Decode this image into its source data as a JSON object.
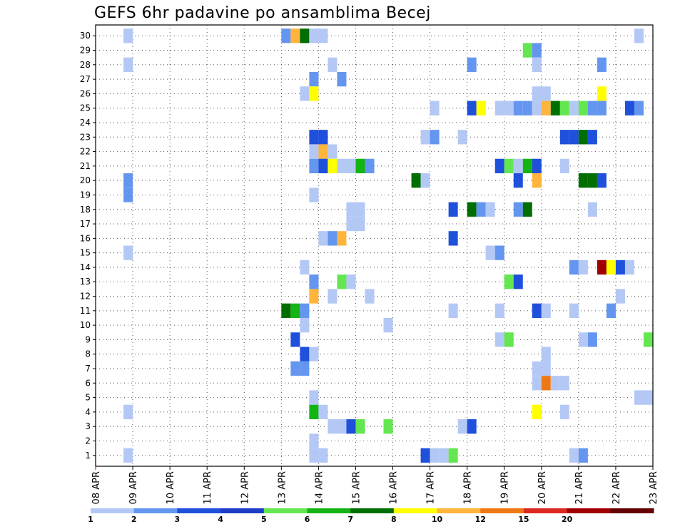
{
  "chart_data": {
    "type": "heatmap",
    "title": "GEFS 6hr padavine po ansamblima Becej",
    "y_ticks": [
      "1",
      "2",
      "3",
      "4",
      "5",
      "6",
      "7",
      "8",
      "9",
      "10",
      "11",
      "12",
      "13",
      "14",
      "15",
      "16",
      "17",
      "18",
      "19",
      "20",
      "21",
      "22",
      "23",
      "24",
      "25",
      "26",
      "27",
      "28",
      "29",
      "30"
    ],
    "y_range": [
      1,
      30
    ],
    "x_ticks": [
      "08 APR",
      "09 APR",
      "10 APR",
      "11 APR",
      "12 APR",
      "13 APR",
      "14 APR",
      "15 APR",
      "16 APR",
      "17 APR",
      "18 APR",
      "19 APR",
      "20 APR",
      "21 APR",
      "22 APR",
      "23 APR"
    ],
    "x_range_days": [
      0,
      15
    ],
    "time_step_hours": 6,
    "grid": true,
    "legend_placement": "bottom",
    "legend": {
      "labels": [
        "1",
        "2",
        "3",
        "4",
        "5",
        "6",
        "7",
        "8",
        "10",
        "12",
        "15",
        "20"
      ],
      "colors": [
        "#b4c8f5",
        "#6496f0",
        "#1e50dc",
        "#1e3cc8",
        "#64e650",
        "#14b414",
        "#006e00",
        "#ffff00",
        "#ffb43c",
        "#f07814",
        "#dc281e",
        "#a00000",
        "#640000"
      ]
    },
    "cells": [
      {
        "time": "08 APR 18Z",
        "member": 30,
        "category": 0
      },
      {
        "time": "13 APR 00Z",
        "member": 30,
        "category": 1
      },
      {
        "time": "13 APR 06Z",
        "member": 30,
        "category": 8
      },
      {
        "time": "13 APR 12Z",
        "member": 30,
        "category": 6
      },
      {
        "time": "13 APR 18Z",
        "member": 30,
        "category": 0
      },
      {
        "time": "14 APR 00Z",
        "member": 30,
        "category": 0
      },
      {
        "time": "22 APR 12Z",
        "member": 30,
        "category": 0
      },
      {
        "time": "19 APR 12Z",
        "member": 29,
        "category": 4
      },
      {
        "time": "19 APR 18Z",
        "member": 29,
        "category": 1
      },
      {
        "time": "08 APR 18Z",
        "member": 28,
        "category": 0
      },
      {
        "time": "14 APR 06Z",
        "member": 28,
        "category": 0
      },
      {
        "time": "18 APR 00Z",
        "member": 28,
        "category": 1
      },
      {
        "time": "19 APR 18Z",
        "member": 28,
        "category": 0
      },
      {
        "time": "21 APR 12Z",
        "member": 28,
        "category": 1
      },
      {
        "time": "13 APR 18Z",
        "member": 27,
        "category": 1
      },
      {
        "time": "14 APR 12Z",
        "member": 27,
        "category": 1
      },
      {
        "time": "13 APR 12Z",
        "member": 26,
        "category": 0
      },
      {
        "time": "13 APR 18Z",
        "member": 26,
        "category": 7
      },
      {
        "time": "19 APR 18Z",
        "member": 26,
        "category": 0
      },
      {
        "time": "20 APR 00Z",
        "member": 26,
        "category": 0
      },
      {
        "time": "21 APR 12Z",
        "member": 26,
        "category": 7
      },
      {
        "time": "17 APR 00Z",
        "member": 25,
        "category": 0
      },
      {
        "time": "18 APR 00Z",
        "member": 25,
        "category": 2
      },
      {
        "time": "18 APR 06Z",
        "member": 25,
        "category": 7
      },
      {
        "time": "18 APR 18Z",
        "member": 25,
        "category": 0
      },
      {
        "time": "19 APR 00Z",
        "member": 25,
        "category": 0
      },
      {
        "time": "19 APR 06Z",
        "member": 25,
        "category": 1
      },
      {
        "time": "19 APR 12Z",
        "member": 25,
        "category": 1
      },
      {
        "time": "19 APR 18Z",
        "member": 25,
        "category": 0
      },
      {
        "time": "20 APR 00Z",
        "member": 25,
        "category": 8
      },
      {
        "time": "20 APR 06Z",
        "member": 25,
        "category": 6
      },
      {
        "time": "20 APR 12Z",
        "member": 25,
        "category": 4
      },
      {
        "time": "20 APR 18Z",
        "member": 25,
        "category": 0
      },
      {
        "time": "21 APR 00Z",
        "member": 25,
        "category": 4
      },
      {
        "time": "21 APR 06Z",
        "member": 25,
        "category": 1
      },
      {
        "time": "21 APR 12Z",
        "member": 25,
        "category": 1
      },
      {
        "time": "22 APR 06Z",
        "member": 25,
        "category": 2
      },
      {
        "time": "22 APR 12Z",
        "member": 25,
        "category": 1
      },
      {
        "time": "13 APR 18Z",
        "member": 23,
        "category": 2
      },
      {
        "time": "14 APR 00Z",
        "member": 23,
        "category": 2
      },
      {
        "time": "16 APR 18Z",
        "member": 23,
        "category": 0
      },
      {
        "time": "17 APR 00Z",
        "member": 23,
        "category": 1
      },
      {
        "time": "17 APR 18Z",
        "member": 23,
        "category": 0
      },
      {
        "time": "20 APR 12Z",
        "member": 23,
        "category": 2
      },
      {
        "time": "20 APR 18Z",
        "member": 23,
        "category": 2
      },
      {
        "time": "21 APR 00Z",
        "member": 23,
        "category": 6
      },
      {
        "time": "21 APR 06Z",
        "member": 23,
        "category": 2
      },
      {
        "time": "13 APR 18Z",
        "member": 22,
        "category": 0
      },
      {
        "time": "14 APR 00Z",
        "member": 22,
        "category": 8
      },
      {
        "time": "14 APR 06Z",
        "member": 22,
        "category": 0
      },
      {
        "time": "13 APR 18Z",
        "member": 21,
        "category": 1
      },
      {
        "time": "14 APR 00Z",
        "member": 21,
        "category": 2
      },
      {
        "time": "14 APR 06Z",
        "member": 21,
        "category": 7
      },
      {
        "time": "14 APR 12Z",
        "member": 21,
        "category": 0
      },
      {
        "time": "14 APR 18Z",
        "member": 21,
        "category": 0
      },
      {
        "time": "15 APR 00Z",
        "member": 21,
        "category": 5
      },
      {
        "time": "15 APR 06Z",
        "member": 21,
        "category": 1
      },
      {
        "time": "18 APR 18Z",
        "member": 21,
        "category": 2
      },
      {
        "time": "19 APR 00Z",
        "member": 21,
        "category": 4
      },
      {
        "time": "19 APR 06Z",
        "member": 21,
        "category": 0
      },
      {
        "time": "19 APR 12Z",
        "member": 21,
        "category": 5
      },
      {
        "time": "19 APR 18Z",
        "member": 21,
        "category": 2
      },
      {
        "time": "20 APR 12Z",
        "member": 21,
        "category": 0
      },
      {
        "time": "08 APR 18Z",
        "member": 20,
        "category": 1
      },
      {
        "time": "16 APR 12Z",
        "member": 20,
        "category": 6
      },
      {
        "time": "16 APR 18Z",
        "member": 20,
        "category": 0
      },
      {
        "time": "19 APR 06Z",
        "member": 20,
        "category": 2
      },
      {
        "time": "19 APR 18Z",
        "member": 20,
        "category": 8
      },
      {
        "time": "21 APR 00Z",
        "member": 20,
        "category": 6
      },
      {
        "time": "21 APR 06Z",
        "member": 20,
        "category": 6
      },
      {
        "time": "21 APR 12Z",
        "member": 20,
        "category": 2
      },
      {
        "time": "08 APR 18Z",
        "member": 19,
        "category": 1
      },
      {
        "time": "13 APR 18Z",
        "member": 19,
        "category": 0
      },
      {
        "time": "17 APR 12Z",
        "member": 18,
        "category": 2
      },
      {
        "time": "14 APR 18Z",
        "member": 18,
        "category": 0
      },
      {
        "time": "15 APR 00Z",
        "member": 18,
        "category": 0
      },
      {
        "time": "18 APR 00Z",
        "member": 18,
        "category": 6
      },
      {
        "time": "18 APR 06Z",
        "member": 18,
        "category": 1
      },
      {
        "time": "18 APR 12Z",
        "member": 18,
        "category": 0
      },
      {
        "time": "19 APR 06Z",
        "member": 18,
        "category": 1
      },
      {
        "time": "19 APR 12Z",
        "member": 18,
        "category": 6
      },
      {
        "time": "21 APR 06Z",
        "member": 18,
        "category": 0
      },
      {
        "time": "14 APR 18Z",
        "member": 17,
        "category": 0
      },
      {
        "time": "15 APR 00Z",
        "member": 17,
        "category": 0
      },
      {
        "time": "14 APR 00Z",
        "member": 16,
        "category": 0
      },
      {
        "time": "14 APR 06Z",
        "member": 16,
        "category": 1
      },
      {
        "time": "14 APR 12Z",
        "member": 16,
        "category": 8
      },
      {
        "time": "17 APR 12Z",
        "member": 16,
        "category": 2
      },
      {
        "time": "08 APR 18Z",
        "member": 15,
        "category": 0
      },
      {
        "time": "18 APR 12Z",
        "member": 15,
        "category": 0
      },
      {
        "time": "18 APR 18Z",
        "member": 15,
        "category": 1
      },
      {
        "time": "13 APR 12Z",
        "member": 14,
        "category": 0
      },
      {
        "time": "20 APR 18Z",
        "member": 14,
        "category": 1
      },
      {
        "time": "21 APR 00Z",
        "member": 14,
        "category": 0
      },
      {
        "time": "21 APR 12Z",
        "member": 14,
        "category": 11
      },
      {
        "time": "21 APR 18Z",
        "member": 14,
        "category": 7
      },
      {
        "time": "22 APR 00Z",
        "member": 14,
        "category": 2
      },
      {
        "time": "22 APR 06Z",
        "member": 14,
        "category": 0
      },
      {
        "time": "13 APR 18Z",
        "member": 13,
        "category": 1
      },
      {
        "time": "14 APR 12Z",
        "member": 13,
        "category": 4
      },
      {
        "time": "14 APR 18Z",
        "member": 13,
        "category": 0
      },
      {
        "time": "19 APR 00Z",
        "member": 13,
        "category": 4
      },
      {
        "time": "19 APR 06Z",
        "member": 13,
        "category": 2
      },
      {
        "time": "13 APR 18Z",
        "member": 12,
        "category": 8
      },
      {
        "time": "14 APR 06Z",
        "member": 12,
        "category": 0
      },
      {
        "time": "15 APR 06Z",
        "member": 12,
        "category": 0
      },
      {
        "time": "22 APR 00Z",
        "member": 12,
        "category": 0
      },
      {
        "time": "13 APR 00Z",
        "member": 11,
        "category": 6
      },
      {
        "time": "13 APR 06Z",
        "member": 11,
        "category": 5
      },
      {
        "time": "13 APR 12Z",
        "member": 11,
        "category": 1
      },
      {
        "time": "17 APR 12Z",
        "member": 11,
        "category": 0
      },
      {
        "time": "18 APR 18Z",
        "member": 11,
        "category": 0
      },
      {
        "time": "19 APR 18Z",
        "member": 11,
        "category": 2
      },
      {
        "time": "20 APR 00Z",
        "member": 11,
        "category": 0
      },
      {
        "time": "20 APR 18Z",
        "member": 11,
        "category": 0
      },
      {
        "time": "21 APR 18Z",
        "member": 11,
        "category": 1
      },
      {
        "time": "13 APR 12Z",
        "member": 10,
        "category": 0
      },
      {
        "time": "15 APR 18Z",
        "member": 10,
        "category": 0
      },
      {
        "time": "13 APR 06Z",
        "member": 9,
        "category": 2
      },
      {
        "time": "18 APR 18Z",
        "member": 9,
        "category": 0
      },
      {
        "time": "19 APR 00Z",
        "member": 9,
        "category": 4
      },
      {
        "time": "21 APR 00Z",
        "member": 9,
        "category": 0
      },
      {
        "time": "21 APR 06Z",
        "member": 9,
        "category": 1
      },
      {
        "time": "22 APR 18Z",
        "member": 9,
        "category": 4
      },
      {
        "time": "13 APR 12Z",
        "member": 8,
        "category": 2
      },
      {
        "time": "13 APR 18Z",
        "member": 8,
        "category": 0
      },
      {
        "time": "20 APR 00Z",
        "member": 8,
        "category": 0
      },
      {
        "time": "13 APR 06Z",
        "member": 7,
        "category": 1
      },
      {
        "time": "13 APR 12Z",
        "member": 7,
        "category": 1
      },
      {
        "time": "19 APR 18Z",
        "member": 7,
        "category": 0
      },
      {
        "time": "20 APR 00Z",
        "member": 7,
        "category": 0
      },
      {
        "time": "19 APR 18Z",
        "member": 6,
        "category": 0
      },
      {
        "time": "20 APR 00Z",
        "member": 6,
        "category": 9
      },
      {
        "time": "20 APR 06Z",
        "member": 6,
        "category": 0
      },
      {
        "time": "20 APR 12Z",
        "member": 6,
        "category": 0
      },
      {
        "time": "13 APR 18Z",
        "member": 5,
        "category": 0
      },
      {
        "time": "22 APR 12Z",
        "member": 5,
        "category": 0
      },
      {
        "time": "22 APR 18Z",
        "member": 5,
        "category": 0
      },
      {
        "time": "08 APR 18Z",
        "member": 4,
        "category": 0
      },
      {
        "time": "13 APR 18Z",
        "member": 4,
        "category": 5
      },
      {
        "time": "14 APR 00Z",
        "member": 4,
        "category": 0
      },
      {
        "time": "19 APR 18Z",
        "member": 4,
        "category": 7
      },
      {
        "time": "20 APR 12Z",
        "member": 4,
        "category": 0
      },
      {
        "time": "14 APR 06Z",
        "member": 3,
        "category": 0
      },
      {
        "time": "14 APR 12Z",
        "member": 3,
        "category": 0
      },
      {
        "time": "14 APR 18Z",
        "member": 3,
        "category": 2
      },
      {
        "time": "15 APR 00Z",
        "member": 3,
        "category": 4
      },
      {
        "time": "15 APR 18Z",
        "member": 3,
        "category": 4
      },
      {
        "time": "17 APR 18Z",
        "member": 3,
        "category": 0
      },
      {
        "time": "18 APR 00Z",
        "member": 3,
        "category": 2
      },
      {
        "time": "13 APR 18Z",
        "member": 2,
        "category": 0
      },
      {
        "time": "08 APR 18Z",
        "member": 1,
        "category": 0
      },
      {
        "time": "13 APR 18Z",
        "member": 1,
        "category": 0
      },
      {
        "time": "14 APR 00Z",
        "member": 1,
        "category": 0
      },
      {
        "time": "16 APR 18Z",
        "member": 1,
        "category": 2
      },
      {
        "time": "17 APR 00Z",
        "member": 1,
        "category": 0
      },
      {
        "time": "17 APR 06Z",
        "member": 1,
        "category": 0
      },
      {
        "time": "17 APR 12Z",
        "member": 1,
        "category": 4
      },
      {
        "time": "20 APR 18Z",
        "member": 1,
        "category": 0
      },
      {
        "time": "21 APR 00Z",
        "member": 1,
        "category": 1
      }
    ]
  }
}
